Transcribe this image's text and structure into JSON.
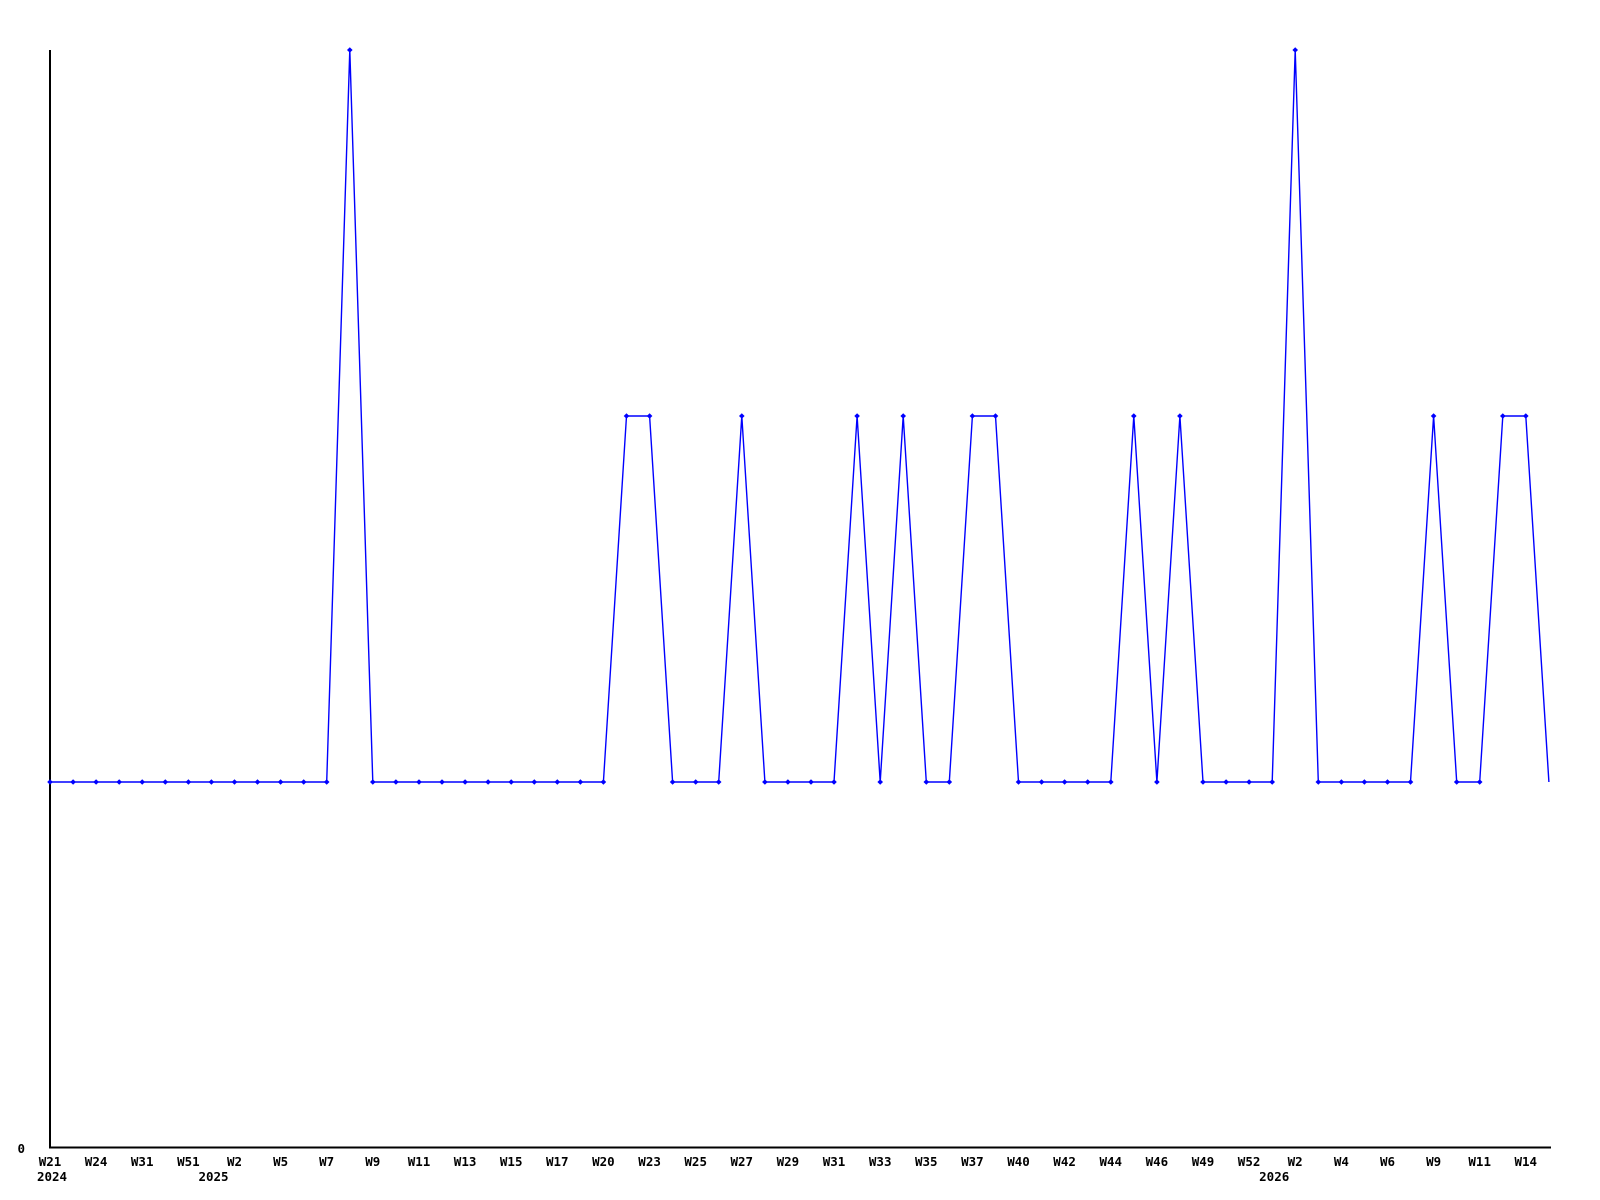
{
  "chart_data": {
    "type": "line",
    "title": "",
    "legend": "none",
    "grid": "off",
    "series_color": "#0000ff",
    "axis_color": "#000000",
    "marker": "diamond",
    "last_point_has_marker": false,
    "y_axis": {
      "origin_label": "0",
      "min": 0,
      "plotted_max": 3,
      "visible_tick_labels": [
        "0"
      ]
    },
    "x_axis": {
      "label_every_n_points": 2,
      "tick_labels": [
        "W21",
        "W24",
        "W31",
        "W51",
        "W2",
        "W5",
        "W7",
        "W9",
        "W11",
        "W13",
        "W15",
        "W17",
        "W20",
        "W23",
        "W25",
        "W27",
        "W29",
        "W31",
        "W33",
        "W35",
        "W37",
        "W40",
        "W42",
        "W44",
        "W46",
        "W49",
        "W52",
        "W2",
        "W4",
        "W6",
        "W9",
        "W11",
        "W14"
      ],
      "year_labels": [
        {
          "text": "2024",
          "tick_index": 0
        },
        {
          "text": "2025",
          "tick_index": 4
        },
        {
          "text": "2026",
          "tick_index": 27
        }
      ]
    },
    "values": [
      1,
      1,
      1,
      1,
      1,
      1,
      1,
      1,
      1,
      1,
      1,
      1,
      1,
      3,
      1,
      1,
      1,
      1,
      1,
      1,
      1,
      1,
      1,
      1,
      1,
      2,
      2,
      1,
      1,
      1,
      2,
      1,
      1,
      1,
      1,
      2,
      1,
      2,
      1,
      1,
      2,
      2,
      1,
      1,
      1,
      1,
      1,
      2,
      1,
      2,
      1,
      1,
      1,
      1,
      3,
      1,
      1,
      1,
      1,
      1,
      2,
      1,
      1,
      2,
      2,
      1
    ]
  }
}
